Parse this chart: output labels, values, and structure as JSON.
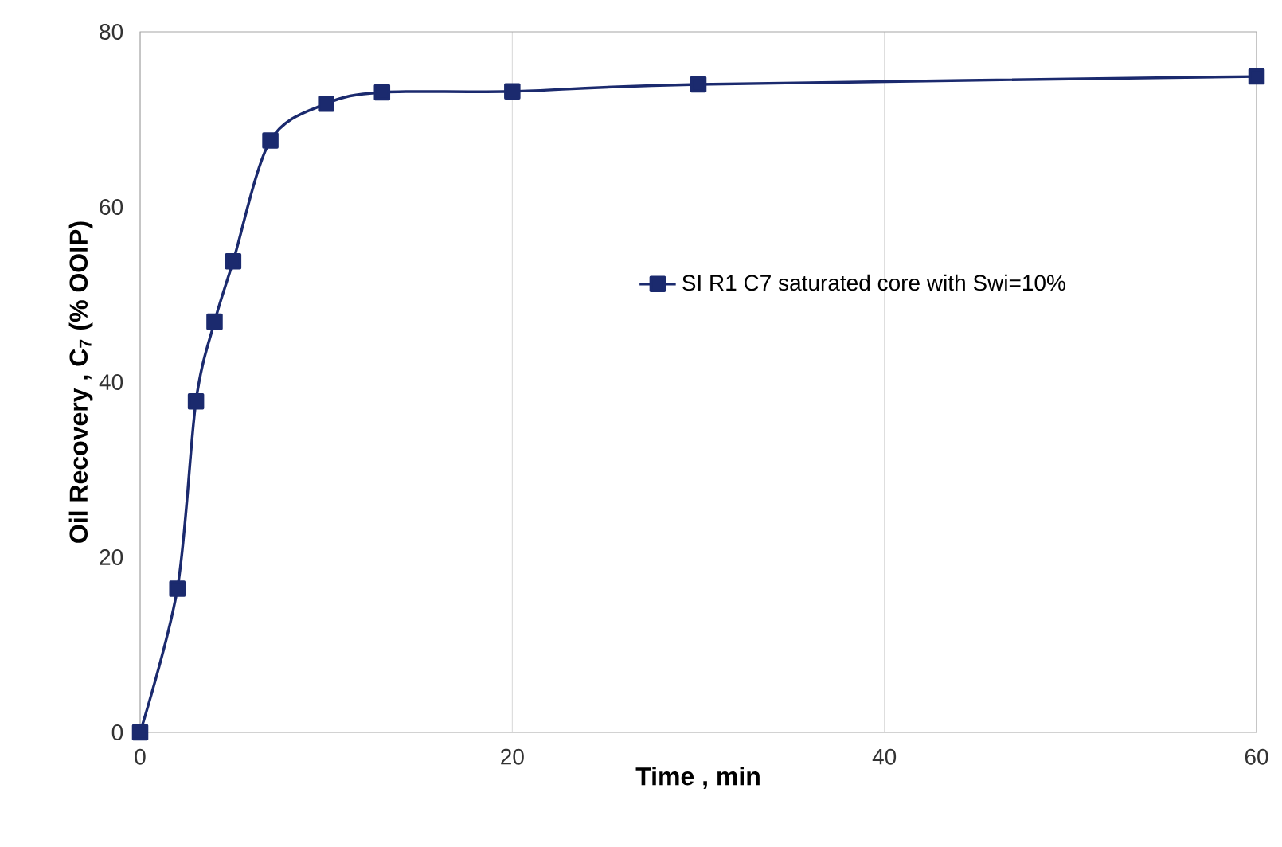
{
  "chart_data": {
    "type": "line",
    "xlabel": "Time , min",
    "ylabel": "Oil Recovery , C$_{7}$ (% OOIP)",
    "x": [
      0,
      2,
      3,
      4,
      5,
      7,
      10,
      13,
      20,
      30,
      60
    ],
    "series": [
      {
        "name": "SI R1  C7 saturated core with Swi=10%",
        "color": "#1b2a6e",
        "values": [
          0,
          16.4,
          37.8,
          46.9,
          53.8,
          67.6,
          71.8,
          73.1,
          73.2,
          74.0,
          74.9
        ]
      }
    ],
    "xlim": [
      0,
      60
    ],
    "ylim": [
      0,
      80
    ],
    "xticks": [
      0,
      20,
      40,
      60
    ],
    "yticks": [
      0,
      20,
      40,
      60,
      80
    ],
    "grid": "x",
    "legend": "right",
    "marker": "square",
    "line_style": "solid"
  }
}
